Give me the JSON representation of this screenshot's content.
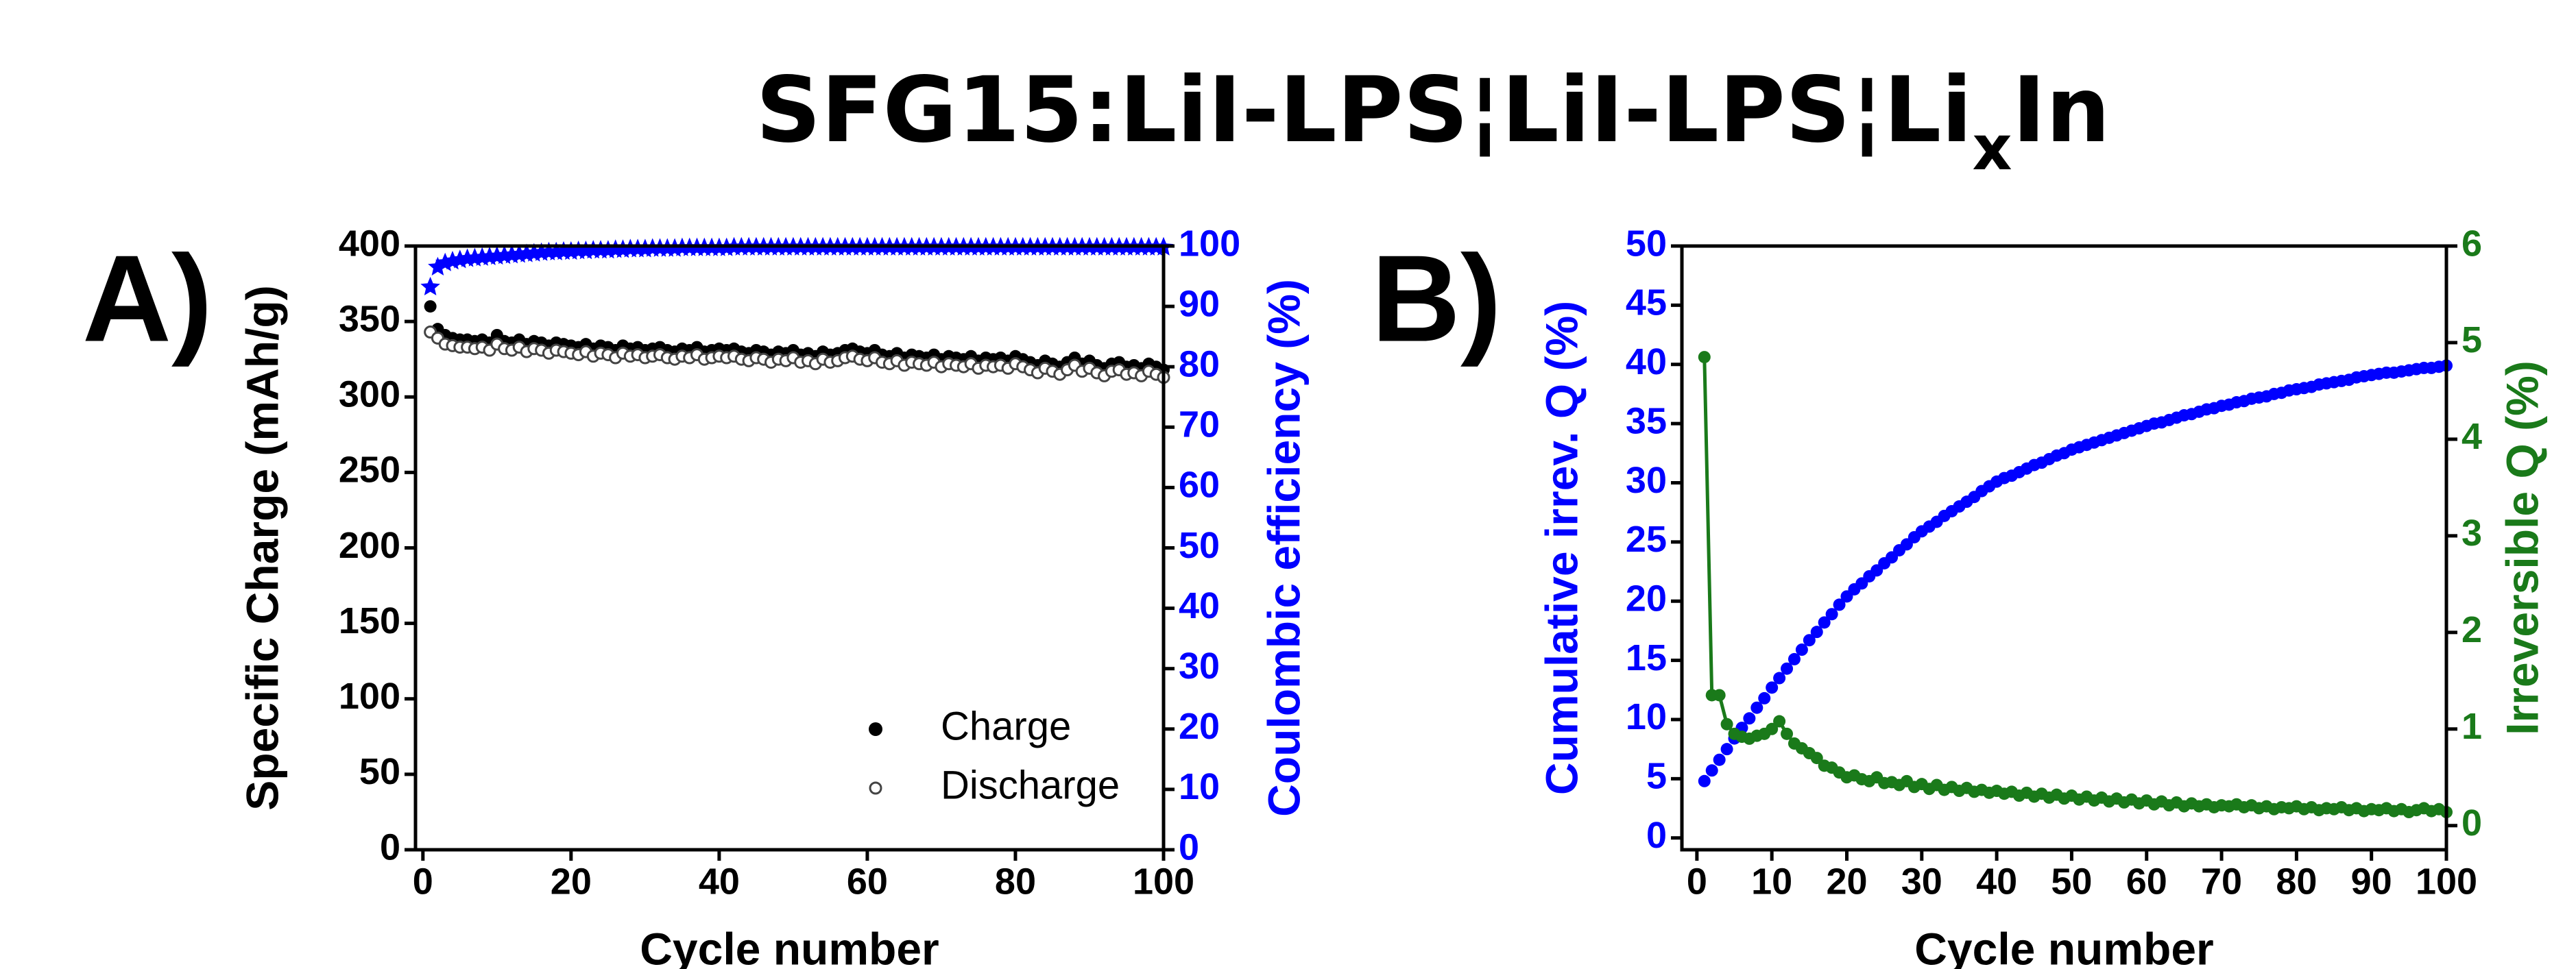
{
  "title": [
    {
      "text": "SFG15:LiI-LPS¦LiI-LPS¦Li"
    },
    {
      "text": "x",
      "sub": true
    },
    {
      "text": "In"
    }
  ],
  "chart_data": [
    {
      "type": "scatter",
      "panel_label": "A)",
      "xlabel": "Cycle number",
      "ylabel": "Specific Charge (mAh/g)",
      "y2label": "Coulombic efficiency (%)",
      "ylabel_color": "#000000",
      "y2label_color": "#0000ff",
      "legend": "lower right",
      "xlim": [
        -1,
        100
      ],
      "xticks": [
        0,
        20,
        40,
        60,
        80,
        100
      ],
      "ylim": [
        0,
        400
      ],
      "yticks": [
        0,
        50,
        100,
        150,
        200,
        250,
        300,
        350,
        400
      ],
      "y2lim": [
        0,
        100
      ],
      "y2ticks": [
        0,
        10,
        20,
        30,
        40,
        50,
        60,
        70,
        80,
        90,
        100
      ],
      "x": [
        1,
        2,
        3,
        4,
        5,
        6,
        7,
        8,
        9,
        10,
        11,
        12,
        13,
        14,
        15,
        16,
        17,
        18,
        19,
        20,
        21,
        22,
        23,
        24,
        25,
        26,
        27,
        28,
        29,
        30,
        31,
        32,
        33,
        34,
        35,
        36,
        37,
        38,
        39,
        40,
        41,
        42,
        43,
        44,
        45,
        46,
        47,
        48,
        49,
        50,
        51,
        52,
        53,
        54,
        55,
        56,
        57,
        58,
        59,
        60,
        61,
        62,
        63,
        64,
        65,
        66,
        67,
        68,
        69,
        70,
        71,
        72,
        73,
        74,
        75,
        76,
        77,
        78,
        79,
        80,
        81,
        82,
        83,
        84,
        85,
        86,
        87,
        88,
        89,
        90,
        91,
        92,
        93,
        94,
        95,
        96,
        97,
        98,
        99,
        100
      ],
      "series": [
        {
          "name": "Charge",
          "color": "#000000",
          "marker": "circle",
          "values": [
            360,
            345,
            341,
            339,
            338,
            338,
            337,
            338,
            336,
            341,
            337,
            336,
            338,
            335,
            337,
            336,
            334,
            336,
            335,
            334,
            333,
            335,
            332,
            334,
            333,
            331,
            334,
            332,
            333,
            331,
            332,
            333,
            331,
            330,
            332,
            331,
            333,
            330,
            331,
            332,
            331,
            332,
            330,
            329,
            331,
            330,
            328,
            330,
            329,
            331,
            328,
            329,
            327,
            330,
            328,
            329,
            331,
            332,
            330,
            329,
            331,
            328,
            327,
            329,
            326,
            328,
            327,
            326,
            328,
            325,
            327,
            326,
            325,
            327,
            324,
            326,
            325,
            326,
            324,
            327,
            325,
            323,
            321,
            324,
            322,
            320,
            323,
            326,
            322,
            324,
            321,
            319,
            322,
            323,
            320,
            321,
            319,
            322,
            320,
            318
          ]
        },
        {
          "name": "Discharge",
          "color": "#444444",
          "marker": "open-circle",
          "values": [
            343,
            339,
            335,
            334,
            333,
            333,
            332,
            333,
            331,
            335,
            332,
            331,
            333,
            330,
            332,
            331,
            329,
            331,
            330,
            329,
            328,
            330,
            327,
            329,
            328,
            326,
            329,
            327,
            328,
            326,
            327,
            328,
            326,
            325,
            327,
            326,
            328,
            325,
            326,
            327,
            326,
            327,
            325,
            324,
            326,
            325,
            323,
            325,
            324,
            326,
            323,
            324,
            322,
            325,
            323,
            324,
            326,
            327,
            325,
            324,
            326,
            323,
            322,
            324,
            321,
            323,
            322,
            321,
            323,
            320,
            322,
            321,
            320,
            322,
            319,
            321,
            320,
            321,
            319,
            322,
            320,
            318,
            316,
            319,
            317,
            315,
            318,
            321,
            317,
            319,
            316,
            314,
            317,
            318,
            315,
            316,
            314,
            317,
            315,
            313
          ]
        },
        {
          "color": "#0000ff",
          "marker": "star",
          "axis": "y2",
          "values": [
            93.2,
            96.5,
            97.2,
            97.5,
            97.7,
            97.9,
            98.0,
            98.1,
            98.2,
            98.3,
            98.4,
            98.5,
            98.6,
            98.7,
            98.8,
            98.9,
            99.0,
            99.0,
            99.1,
            99.1,
            99.2,
            99.2,
            99.3,
            99.3,
            99.3,
            99.4,
            99.4,
            99.5,
            99.5,
            99.5,
            99.6,
            99.6,
            99.6,
            99.6,
            99.7,
            99.7,
            99.7,
            99.7,
            99.7,
            99.7,
            99.7,
            99.8,
            99.8,
            99.8,
            99.8,
            99.8,
            99.8,
            99.8,
            99.8,
            99.8,
            99.8,
            99.8,
            99.8,
            99.8,
            99.8,
            99.8,
            99.8,
            99.8,
            99.8,
            99.8,
            99.8,
            99.8,
            99.8,
            99.8,
            99.8,
            99.8,
            99.8,
            99.8,
            99.8,
            99.8,
            99.8,
            99.8,
            99.8,
            99.8,
            99.8,
            99.8,
            99.8,
            99.8,
            99.8,
            99.8,
            99.8,
            99.8,
            99.8,
            99.8,
            99.8,
            99.8,
            99.8,
            99.8,
            99.8,
            99.8,
            99.8,
            99.8,
            99.8,
            99.8,
            99.8,
            99.8,
            99.8,
            99.8,
            99.8,
            99.8
          ]
        }
      ]
    },
    {
      "type": "scatter",
      "panel_label": "B)",
      "xlabel": "Cycle number",
      "ylabel": "Cumulative irrev. Q (%)",
      "y2label": "Irreversible Q (%)",
      "ylabel_color": "#0000ff",
      "y2label_color": "#1a7a1a",
      "xlim": [
        -2,
        100
      ],
      "xticks": [
        0,
        10,
        20,
        30,
        40,
        50,
        60,
        70,
        80,
        90,
        100
      ],
      "ylim": [
        -1,
        50
      ],
      "yticks": [
        0,
        5,
        10,
        15,
        20,
        25,
        30,
        35,
        40,
        45,
        50
      ],
      "y2lim": [
        -0.25,
        6
      ],
      "y2ticks": [
        0,
        1,
        2,
        3,
        4,
        5,
        6
      ],
      "x": [
        1,
        2,
        3,
        4,
        5,
        6,
        7,
        8,
        9,
        10,
        11,
        12,
        13,
        14,
        15,
        16,
        17,
        18,
        19,
        20,
        21,
        22,
        23,
        24,
        25,
        26,
        27,
        28,
        29,
        30,
        31,
        32,
        33,
        34,
        35,
        36,
        37,
        38,
        39,
        40,
        41,
        42,
        43,
        44,
        45,
        46,
        47,
        48,
        49,
        50,
        51,
        52,
        53,
        54,
        55,
        56,
        57,
        58,
        59,
        60,
        61,
        62,
        63,
        64,
        65,
        66,
        67,
        68,
        69,
        70,
        71,
        72,
        73,
        74,
        75,
        76,
        77,
        78,
        79,
        80,
        81,
        82,
        83,
        84,
        85,
        86,
        87,
        88,
        89,
        90,
        91,
        92,
        93,
        94,
        95,
        96,
        97,
        98,
        99,
        100
      ],
      "series": [
        {
          "color": "#0000ff",
          "marker": "circle",
          "values": [
            4.8,
            5.7,
            6.6,
            7.5,
            8.4,
            9.3,
            10.1,
            11.0,
            11.8,
            12.7,
            13.5,
            14.3,
            15.1,
            15.9,
            16.7,
            17.4,
            18.2,
            18.9,
            19.7,
            20.4,
            21.0,
            21.5,
            22.1,
            22.6,
            23.2,
            23.7,
            24.3,
            24.8,
            25.4,
            25.9,
            26.3,
            26.7,
            27.2,
            27.6,
            28.0,
            28.4,
            28.8,
            29.3,
            29.7,
            30.1,
            30.4,
            30.6,
            30.9,
            31.2,
            31.5,
            31.7,
            32.0,
            32.3,
            32.5,
            32.8,
            33.0,
            33.2,
            33.4,
            33.6,
            33.8,
            34.0,
            34.2,
            34.4,
            34.6,
            34.8,
            35.0,
            35.1,
            35.3,
            35.5,
            35.7,
            35.8,
            36.0,
            36.2,
            36.3,
            36.5,
            36.6,
            36.8,
            36.9,
            37.1,
            37.2,
            37.3,
            37.5,
            37.6,
            37.8,
            37.9,
            38.0,
            38.1,
            38.3,
            38.4,
            38.5,
            38.6,
            38.7,
            38.9,
            39.0,
            39.1,
            39.2,
            39.3,
            39.3,
            39.4,
            39.5,
            39.6,
            39.7,
            39.7,
            39.8,
            39.9
          ]
        },
        {
          "color": "#1a7a1a",
          "marker": "circle",
          "line": true,
          "axis": "y2",
          "values": [
            4.85,
            1.35,
            1.35,
            1.05,
            0.95,
            0.92,
            0.9,
            0.93,
            0.95,
            1.0,
            1.08,
            0.95,
            0.85,
            0.8,
            0.75,
            0.7,
            0.62,
            0.6,
            0.55,
            0.5,
            0.52,
            0.48,
            0.46,
            0.5,
            0.44,
            0.45,
            0.42,
            0.46,
            0.4,
            0.43,
            0.38,
            0.42,
            0.37,
            0.4,
            0.36,
            0.39,
            0.35,
            0.37,
            0.34,
            0.36,
            0.33,
            0.35,
            0.31,
            0.34,
            0.3,
            0.33,
            0.29,
            0.32,
            0.28,
            0.31,
            0.27,
            0.3,
            0.26,
            0.29,
            0.25,
            0.28,
            0.24,
            0.27,
            0.23,
            0.26,
            0.22,
            0.25,
            0.21,
            0.24,
            0.2,
            0.23,
            0.2,
            0.22,
            0.19,
            0.21,
            0.2,
            0.22,
            0.19,
            0.21,
            0.18,
            0.2,
            0.17,
            0.19,
            0.18,
            0.2,
            0.17,
            0.19,
            0.16,
            0.18,
            0.17,
            0.19,
            0.16,
            0.18,
            0.15,
            0.17,
            0.16,
            0.18,
            0.15,
            0.17,
            0.14,
            0.16,
            0.18,
            0.15,
            0.17,
            0.14
          ]
        }
      ]
    }
  ]
}
